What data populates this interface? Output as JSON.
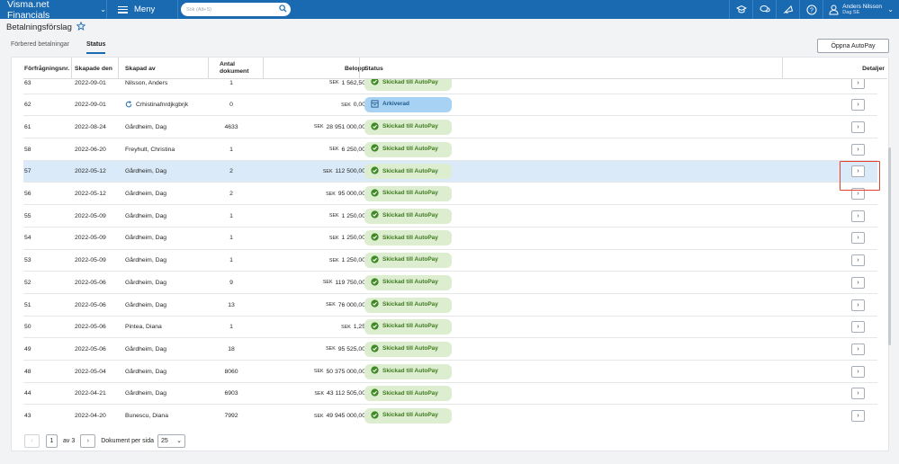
{
  "topbar": {
    "brand": "Visma.net Financials",
    "menu_label": "Meny",
    "search_placeholder": "Sök (Alt+S)",
    "user_name": "Anders Nilsson",
    "user_company": "Dag SE"
  },
  "page": {
    "title": "Betalningsförslag",
    "tabs": [
      "Förbered betalningar",
      "Status"
    ],
    "active_tab": "Status",
    "open_autopay_label": "Öppna AutoPay"
  },
  "table": {
    "headers": {
      "no": "Förfrågningsnr.",
      "date": "Skapade den",
      "by": "Skapad av",
      "count_line1": "Antal",
      "count_line2": "dokument",
      "amount": "Belopp",
      "status": "Status",
      "details": "Detaljer"
    },
    "currency": "SEK",
    "rows": [
      {
        "no": "63",
        "date": "2022-09-01",
        "by": "Nilsson, Anders",
        "count": "1",
        "amount": "1 562,50",
        "status": "Skickad till AutoPay",
        "status_type": "sent"
      },
      {
        "no": "62",
        "date": "2022-09-01",
        "by": "Crhistinafnrdjkgbrjk",
        "count": "0",
        "amount": "0,00",
        "status": "Arkiverad",
        "status_type": "archived",
        "by_icon": "refresh-icon"
      },
      {
        "no": "61",
        "date": "2022-08-24",
        "by": "Gårdheim, Dag",
        "count": "4633",
        "amount": "28 951 000,00",
        "status": "Skickad till AutoPay",
        "status_type": "sent"
      },
      {
        "no": "58",
        "date": "2022-06-20",
        "by": "Freyhult, Christina",
        "count": "1",
        "amount": "6 250,00",
        "status": "Skickad till AutoPay",
        "status_type": "sent"
      },
      {
        "no": "57",
        "date": "2022-05-12",
        "by": "Gårdheim, Dag",
        "count": "2",
        "amount": "112 500,00",
        "status": "Skickad till AutoPay",
        "status_type": "sent",
        "selected": true
      },
      {
        "no": "56",
        "date": "2022-05-12",
        "by": "Gårdheim, Dag",
        "count": "2",
        "amount": "95 000,00",
        "status": "Skickad till AutoPay",
        "status_type": "sent"
      },
      {
        "no": "55",
        "date": "2022-05-09",
        "by": "Gårdheim, Dag",
        "count": "1",
        "amount": "1 250,00",
        "status": "Skickad till AutoPay",
        "status_type": "sent"
      },
      {
        "no": "54",
        "date": "2022-05-09",
        "by": "Gårdheim, Dag",
        "count": "1",
        "amount": "1 250,00",
        "status": "Skickad till AutoPay",
        "status_type": "sent"
      },
      {
        "no": "53",
        "date": "2022-05-09",
        "by": "Gårdheim, Dag",
        "count": "1",
        "amount": "1 250,00",
        "status": "Skickad till AutoPay",
        "status_type": "sent"
      },
      {
        "no": "52",
        "date": "2022-05-06",
        "by": "Gårdheim, Dag",
        "count": "9",
        "amount": "119 750,00",
        "status": "Skickad till AutoPay",
        "status_type": "sent"
      },
      {
        "no": "51",
        "date": "2022-05-06",
        "by": "Gårdheim, Dag",
        "count": "13",
        "amount": "76 000,00",
        "status": "Skickad till AutoPay",
        "status_type": "sent"
      },
      {
        "no": "50",
        "date": "2022-05-06",
        "by": "Pintea, Diana",
        "count": "1",
        "amount": "1,25",
        "status": "Skickad till AutoPay",
        "status_type": "sent"
      },
      {
        "no": "49",
        "date": "2022-05-06",
        "by": "Gårdheim, Dag",
        "count": "18",
        "amount": "95 525,00",
        "status": "Skickad till AutoPay",
        "status_type": "sent"
      },
      {
        "no": "48",
        "date": "2022-05-04",
        "by": "Gårdheim, Dag",
        "count": "8060",
        "amount": "50 375 000,00",
        "status": "Skickad till AutoPay",
        "status_type": "sent"
      },
      {
        "no": "44",
        "date": "2022-04-21",
        "by": "Gårdheim, Dag",
        "count": "6903",
        "amount": "43 112 505,00",
        "status": "Skickad till AutoPay",
        "status_type": "sent"
      },
      {
        "no": "43",
        "date": "2022-04-20",
        "by": "Bunescu, Diana",
        "count": "7992",
        "amount": "49 945 000,00",
        "status": "Skickad till AutoPay",
        "status_type": "sent"
      }
    ]
  },
  "pager": {
    "page": "1",
    "of_label": "av 3",
    "per_page_label": "Dokument per sida",
    "per_page_value": "25"
  },
  "colors": {
    "brand_blue": "#1a6ab2",
    "sent_bg": "#dcedd0",
    "sent_text": "#3d7a1f",
    "archived_bg": "#a8d2f4",
    "selected_row": "#dbeaf8",
    "highlight": "#e3412b"
  }
}
